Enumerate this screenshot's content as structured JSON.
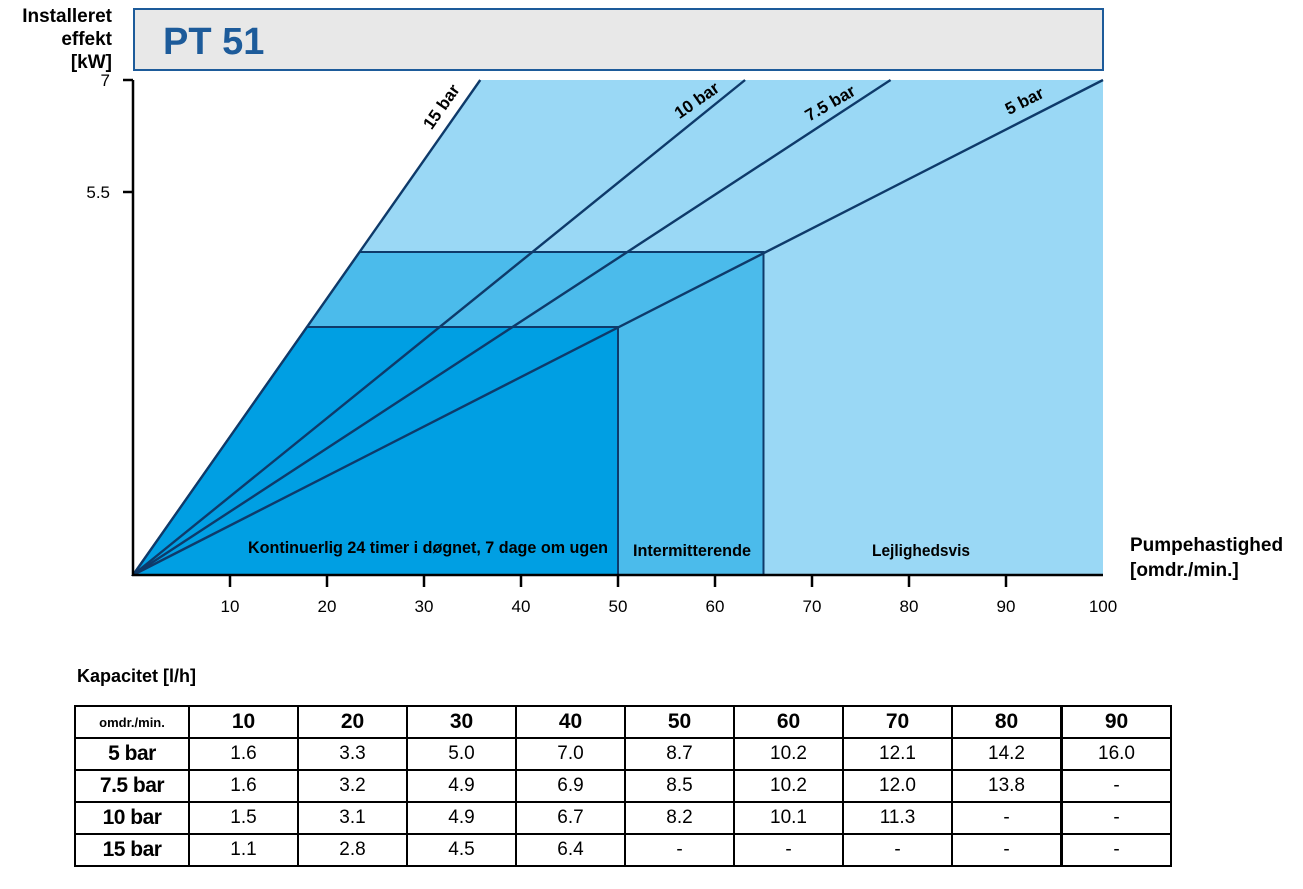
{
  "chart_data": {
    "type": "line",
    "title": "PT 51",
    "ylabel_lines": [
      "Installeret",
      "effekt",
      "[kW]"
    ],
    "xlabel_lines": [
      "Pumpehastighed",
      "[omdr./min.]"
    ],
    "x_ticks": [
      10,
      20,
      30,
      40,
      50,
      60,
      70,
      80,
      90,
      100
    ],
    "y_ticks": [
      5.5,
      7
    ],
    "y_tick_labels": [
      "5.5",
      "7"
    ],
    "xlim": [
      0,
      100
    ],
    "series": [
      {
        "name": "15 bar",
        "x": [
          0,
          35.8
        ],
        "y": [
          0,
          7
        ]
      },
      {
        "name": "10 bar",
        "x": [
          0,
          63.1
        ],
        "y": [
          0,
          7
        ]
      },
      {
        "name": "7.5 bar",
        "x": [
          0,
          78.1
        ],
        "y": [
          0,
          7
        ]
      },
      {
        "name": "5 bar",
        "x": [
          0,
          100
        ],
        "y": [
          0,
          7
        ]
      }
    ],
    "regions": [
      {
        "label": "Kontinuerlig 24 timer i døgnet, 7 dage om ugen",
        "x_max": 50,
        "color": "#009fe3"
      },
      {
        "label": "Intermitterende",
        "x_max": 65,
        "color": "#4bbbeb"
      },
      {
        "label": "Lejlighedsvis",
        "x_max": 100,
        "color": "#9ad8f5"
      }
    ],
    "colors": {
      "header_bg": "#e8e8e8",
      "header_border": "#1d5b9a",
      "title": "#1d5b9a",
      "line": "#0e3a6a"
    }
  },
  "capacity": {
    "title": "Kapacitet [l/h]",
    "corner": "omdr./min.",
    "columns": [
      "10",
      "20",
      "30",
      "40",
      "50",
      "60",
      "70",
      "80",
      "90"
    ],
    "rows": [
      {
        "label": "5 bar",
        "values": [
          "1.6",
          "3.3",
          "5.0",
          "7.0",
          "8.7",
          "10.2",
          "12.1",
          "14.2",
          "16.0"
        ]
      },
      {
        "label": "7.5 bar",
        "values": [
          "1.6",
          "3.2",
          "4.9",
          "6.9",
          "8.5",
          "10.2",
          "12.0",
          "13.8",
          "-"
        ]
      },
      {
        "label": "10 bar",
        "values": [
          "1.5",
          "3.1",
          "4.9",
          "6.7",
          "8.2",
          "10.1",
          "11.3",
          "-",
          "-"
        ]
      },
      {
        "label": "15 bar",
        "values": [
          "1.1",
          "2.8",
          "4.5",
          "6.4",
          "-",
          "-",
          "-",
          "-",
          "-"
        ]
      }
    ]
  }
}
